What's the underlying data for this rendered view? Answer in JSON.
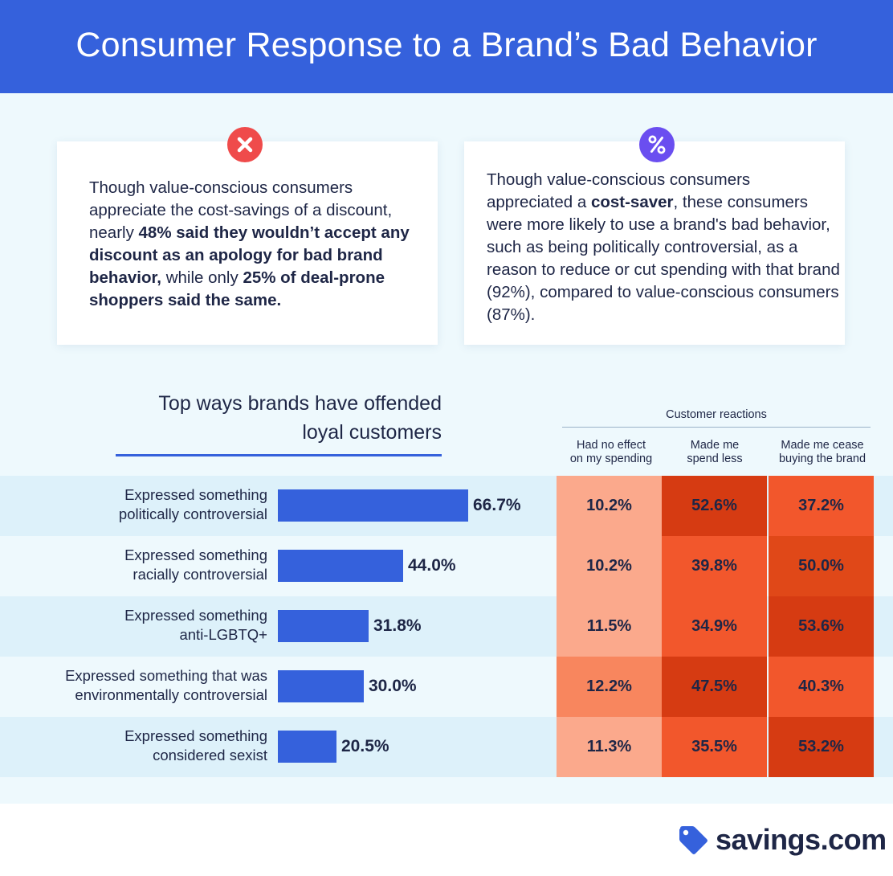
{
  "title": "Consumer Response to a Brand’s Bad Behavior",
  "cards": [
    {
      "icon": "x-circle-icon",
      "color": "#ef4b4b",
      "segments": [
        {
          "text": "Though value-conscious consumers appreciate the cost-savings of a discount, nearly ",
          "bold": false
        },
        {
          "text": "48% said they wouldn’t accept any discount as an apology for bad brand behavior,",
          "bold": true
        },
        {
          "text": " while only ",
          "bold": false
        },
        {
          "text": "25% of deal-prone shoppers said the same.",
          "bold": true
        }
      ]
    },
    {
      "icon": "percent-circle-icon",
      "color": "#6a4ef0",
      "segments": [
        {
          "text": "Though value-conscious consumers appreciated a ",
          "bold": false
        },
        {
          "text": "cost-saver",
          "bold": true
        },
        {
          "text": ", these consumers were more likely to use a brand's bad behavior, such as being politically controversial, as a reason to reduce or cut spending with that brand (92%), compared to value-conscious consumers (87%).",
          "bold": false
        }
      ]
    }
  ],
  "chart_data": {
    "type": "bar",
    "title_lines": [
      "Top ways brands have offended",
      "loyal customers"
    ],
    "categories": [
      [
        "Expressed something",
        "politically controversial"
      ],
      [
        "Expressed something",
        "racially controversial"
      ],
      [
        "Expressed something",
        "anti-LGBTQ+"
      ],
      [
        "Expressed something that was",
        "environmentally controversial"
      ],
      [
        "Expressed something",
        "considered sexist"
      ]
    ],
    "values": [
      66.7,
      44.0,
      31.8,
      30.0,
      20.5
    ],
    "value_labels": [
      "66.7%",
      "44.0%",
      "31.8%",
      "30.0%",
      "20.5%"
    ],
    "heatmap": {
      "group_label": "Customer reactions",
      "columns": [
        [
          "Had no effect",
          "on my spending"
        ],
        [
          "Made me",
          "spend less"
        ],
        [
          "Made me cease",
          "buying the brand"
        ]
      ],
      "values": [
        [
          10.2,
          52.6,
          37.2
        ],
        [
          10.2,
          39.8,
          50.0
        ],
        [
          11.5,
          34.9,
          53.6
        ],
        [
          12.2,
          47.5,
          40.3
        ],
        [
          11.3,
          35.5,
          53.2
        ]
      ],
      "labels": [
        [
          "10.2%",
          "52.6%",
          "37.2%"
        ],
        [
          "10.2%",
          "39.8%",
          "50.0%"
        ],
        [
          "11.5%",
          "34.9%",
          "53.6%"
        ],
        [
          "12.2%",
          "47.5%",
          "40.3%"
        ],
        [
          "11.3%",
          "35.5%",
          "53.2%"
        ]
      ],
      "colors": [
        [
          "#fba98c",
          "#d63b12",
          "#f2572c"
        ],
        [
          "#fba98c",
          "#f2572c",
          "#e04818"
        ],
        [
          "#fba98c",
          "#f2572c",
          "#d63b12"
        ],
        [
          "#f8865e",
          "#d63b12",
          "#f2572c"
        ],
        [
          "#fba98c",
          "#f2572c",
          "#d63b12"
        ]
      ]
    }
  },
  "colors": {
    "brand_blue": "#3561dc",
    "text_dark": "#1e2646",
    "logo_tag": "#3561dc"
  },
  "logo": {
    "text": "savings.com",
    "icon": "price-tag-icon"
  }
}
